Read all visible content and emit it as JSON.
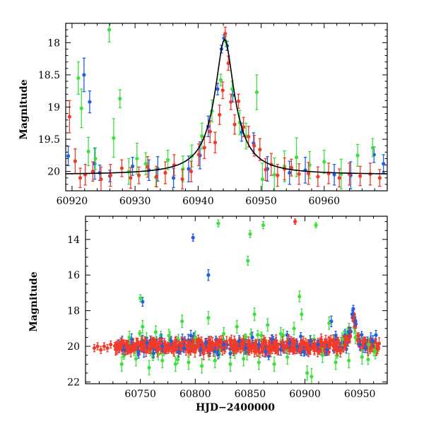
{
  "colors": {
    "blue": "#1f5fe0",
    "green": "#3ee03e",
    "red": "#f03a2a",
    "model": "#000000",
    "frame": "#000000"
  },
  "chart_data": [
    {
      "type": "scatter",
      "title": "",
      "xlabel": "",
      "ylabel": "Magnitude",
      "xlim": [
        60919,
        60970
      ],
      "ylim": [
        20.3,
        17.7
      ],
      "xticks": [
        60920,
        60930,
        60940,
        60950,
        60960
      ],
      "xtick_labels": [
        "60920",
        "60930",
        "60940",
        "60950",
        "60960"
      ],
      "yticks": [
        18,
        18.5,
        19,
        19.5,
        20
      ],
      "ytick_labels": [
        "18",
        "18.5",
        "19",
        "19.5",
        "20"
      ],
      "model_curve": {
        "t0": 60944.2,
        "peak_mag": 17.95,
        "baseline_mag": 20.05,
        "half_width_days": 1.2,
        "samples": 241
      },
      "series": [
        {
          "name": "blue",
          "color_key": "blue",
          "x": [
            60919.4,
            60921.9,
            60922.8,
            60923.6,
            60924.4,
            60926.0,
            60929.6,
            60932.2,
            60933.6,
            60936.1,
            60938.5,
            60940.3,
            60941.6,
            60943.1,
            60943.7,
            60944.1,
            60944.6,
            60945.5,
            60946.9,
            60948.8,
            60951.0,
            60954.5,
            60957.0,
            60961.6,
            60964.2,
            60967.9,
            60969.4
          ],
          "y": [
            19.76,
            18.5,
            18.92,
            19.88,
            20.02,
            20.07,
            19.92,
            19.98,
            19.96,
            20.1,
            19.96,
            19.75,
            19.3,
            18.72,
            18.1,
            17.93,
            18.05,
            18.82,
            19.39,
            19.56,
            19.96,
            20.02,
            19.98,
            20.05,
            20.06,
            19.74,
            19.88
          ],
          "err": [
            0.15,
            0.26,
            0.17,
            0.24,
            0.12,
            0.09,
            0.14,
            0.16,
            0.19,
            0.15,
            0.2,
            0.21,
            0.16,
            0.09,
            0.06,
            0.05,
            0.07,
            0.1,
            0.14,
            0.16,
            0.19,
            0.18,
            0.2,
            0.16,
            0.21,
            0.12,
            0.14
          ]
        },
        {
          "name": "green",
          "color_key": "green",
          "x": [
            60921.0,
            60921.5,
            60922.6,
            60923.7,
            60925.9,
            60926.6,
            60927.6,
            60929.0,
            60930.3,
            60931.7,
            60933.3,
            60935.2,
            60937.6,
            60939.0,
            60940.6,
            60942.2,
            60943.6,
            60944.4,
            60945.4,
            60946.6,
            60947.6,
            60949.3,
            60950.2,
            60952.1,
            60953.7,
            60955.6,
            60957.7,
            60960.0,
            60962.7,
            60965.3,
            60967.7
          ],
          "y": [
            18.55,
            19.02,
            19.69,
            19.8,
            17.8,
            19.48,
            18.87,
            20.0,
            19.8,
            19.88,
            20.09,
            19.82,
            19.96,
            19.76,
            19.45,
            19.06,
            18.58,
            17.98,
            18.72,
            19.24,
            19.45,
            18.77,
            20.12,
            20.05,
            19.92,
            19.78,
            19.9,
            19.85,
            20.04,
            19.75,
            19.63
          ],
          "err": [
            0.25,
            0.3,
            0.22,
            0.17,
            0.19,
            0.3,
            0.14,
            0.2,
            0.24,
            0.17,
            0.14,
            0.15,
            0.2,
            0.17,
            0.2,
            0.17,
            0.09,
            0.08,
            0.12,
            0.19,
            0.2,
            0.27,
            0.25,
            0.26,
            0.24,
            0.3,
            0.21,
            0.18,
            0.23,
            0.17,
            0.14
          ]
        },
        {
          "name": "red",
          "color_key": "red",
          "x": [
            60919.6,
            60920.5,
            60921.3,
            60922.1,
            60923.3,
            60924.6,
            60926.1,
            60927.9,
            60929.3,
            60930.6,
            60932.0,
            60933.4,
            60934.8,
            60936.2,
            60937.5,
            60938.9,
            60940.1,
            60941.0,
            60941.9,
            60942.7,
            60943.4,
            60943.9,
            60944.3,
            60944.8,
            60945.2,
            60945.8,
            60946.4,
            60947.2,
            60948.0,
            60948.9,
            60949.8,
            60950.7,
            60951.6,
            60952.6,
            60953.7,
            60954.8,
            60956.0,
            60957.5,
            60959.0,
            60960.7,
            60962.4,
            60964.0,
            60965.7,
            60967.3,
            60968.8
          ],
          "y": [
            19.15,
            19.84,
            20.1,
            20.05,
            20.0,
            20.12,
            20.06,
            19.95,
            20.1,
            20.06,
            19.93,
            20.08,
            20.02,
            19.9,
            20.12,
            20.0,
            19.74,
            19.63,
            19.38,
            19.55,
            19.12,
            18.74,
            17.86,
            18.32,
            18.92,
            19.27,
            18.91,
            19.31,
            19.46,
            19.6,
            19.66,
            19.97,
            19.89,
            20.06,
            19.96,
            19.94,
            20.04,
            20.03,
            20.08,
            20.03,
            20.1,
            20.04,
            20.07,
            20.04,
            20.1
          ],
          "err": [
            0.25,
            0.19,
            0.15,
            0.16,
            0.15,
            0.19,
            0.17,
            0.13,
            0.16,
            0.13,
            0.16,
            0.16,
            0.17,
            0.16,
            0.15,
            0.16,
            0.17,
            0.17,
            0.17,
            0.16,
            0.15,
            0.13,
            0.1,
            0.11,
            0.12,
            0.15,
            0.11,
            0.15,
            0.16,
            0.16,
            0.17,
            0.17,
            0.17,
            0.17,
            0.17,
            0.13,
            0.16,
            0.17,
            0.15,
            0.16,
            0.14,
            0.17,
            0.15,
            0.17,
            0.13
          ]
        }
      ]
    },
    {
      "type": "scatter",
      "title": "",
      "xlabel": "HJD−2400000",
      "ylabel": "Magnitude",
      "xlim": [
        60700,
        60975
      ],
      "ylim": [
        22.1,
        12.7
      ],
      "xticks": [
        60750,
        60800,
        60850,
        60900,
        60950
      ],
      "xtick_labels": [
        "60750",
        "60800",
        "60850",
        "60900",
        "60950"
      ],
      "yticks": [
        14,
        16,
        18,
        20,
        22
      ],
      "ytick_labels": [
        "14",
        "16",
        "18",
        "20",
        "22"
      ],
      "baseline_mag": 20.0,
      "series": [
        {
          "name": "blue",
          "color_key": "blue",
          "x": [
            60735,
            60742,
            60748,
            60752,
            60756,
            60762,
            60770,
            60778,
            60785,
            60790,
            60796,
            60798,
            60805,
            60810,
            60812,
            60818,
            60826,
            60832,
            60840,
            60846,
            60852,
            60858,
            60864,
            60870,
            60878,
            60886,
            60893,
            60899,
            60905,
            60912,
            60920,
            60924,
            60928,
            60934,
            60940,
            60943,
            60944,
            60946,
            60950,
            60955,
            60962
          ],
          "y": [
            20.2,
            19.6,
            20.3,
            17.5,
            19.8,
            20.4,
            20.0,
            19.7,
            20.3,
            20.1,
            19.4,
            13.9,
            20.2,
            19.8,
            16.0,
            20.3,
            19.9,
            20.4,
            19.7,
            20.1,
            19.5,
            19.9,
            20.3,
            19.6,
            20.2,
            19.8,
            20.0,
            20.3,
            19.7,
            19.9,
            20.2,
            18.6,
            19.4,
            19.8,
            19.2,
            18.2,
            17.9,
            18.6,
            19.9,
            20.1,
            19.7
          ],
          "err": [
            0.25,
            0.3,
            0.25,
            0.25,
            0.3,
            0.25,
            0.3,
            0.25,
            0.3,
            0.25,
            0.3,
            0.2,
            0.3,
            0.25,
            0.3,
            0.25,
            0.3,
            0.25,
            0.3,
            0.25,
            0.3,
            0.25,
            0.3,
            0.25,
            0.3,
            0.25,
            0.3,
            0.25,
            0.3,
            0.25,
            0.3,
            0.3,
            0.25,
            0.3,
            0.25,
            0.2,
            0.2,
            0.25,
            0.3,
            0.25,
            0.3
          ]
        },
        {
          "name": "green",
          "color_key": "green",
          "x": [
            60733,
            60740,
            60746,
            60750,
            60752,
            60758,
            60764,
            60770,
            60776,
            60782,
            60788,
            60794,
            60800,
            60806,
            60812,
            60818,
            60821,
            60826,
            60832,
            60838,
            60844,
            60848,
            60850,
            60854,
            60858,
            60862,
            60866,
            60872,
            60878,
            60884,
            60890,
            60895,
            60897,
            60902,
            60906,
            60910,
            60916,
            60922,
            60928,
            60934,
            60940,
            60946,
            60952,
            60958,
            60964
          ],
          "y": [
            21.0,
            19.5,
            20.7,
            17.3,
            18.9,
            21.2,
            19.2,
            20.8,
            19.4,
            21.0,
            18.6,
            20.9,
            19.5,
            21.1,
            18.4,
            20.8,
            13.1,
            19.3,
            21.0,
            18.9,
            20.7,
            15.2,
            13.7,
            18.2,
            20.9,
            13.2,
            18.8,
            21.0,
            19.3,
            20.6,
            19.0,
            17.2,
            18.2,
            21.5,
            21.7,
            13.2,
            20.5,
            18.7,
            20.9,
            19.6,
            20.8,
            19.5,
            20.6,
            19.9,
            20.3
          ],
          "err": [
            0.4,
            0.35,
            0.4,
            0.2,
            0.35,
            0.4,
            0.35,
            0.4,
            0.35,
            0.4,
            0.35,
            0.4,
            0.35,
            0.4,
            0.35,
            0.4,
            0.2,
            0.35,
            0.4,
            0.35,
            0.4,
            0.25,
            0.2,
            0.35,
            0.4,
            0.2,
            0.35,
            0.4,
            0.35,
            0.4,
            0.35,
            0.3,
            0.3,
            0.4,
            0.45,
            0.15,
            0.4,
            0.35,
            0.4,
            0.35,
            0.4,
            0.35,
            0.4,
            0.35,
            0.4
          ]
        },
        {
          "name": "red",
          "color_key": "red",
          "x": [
            60708,
            60711,
            60714,
            60717,
            60720,
            60723,
            60891
          ],
          "y": [
            20.1,
            20.0,
            20.2,
            20.0,
            20.1,
            19.9,
            13.0
          ],
          "err": [
            0.2,
            0.2,
            0.2,
            0.2,
            0.2,
            0.2,
            0.15
          ]
        }
      ]
    }
  ]
}
